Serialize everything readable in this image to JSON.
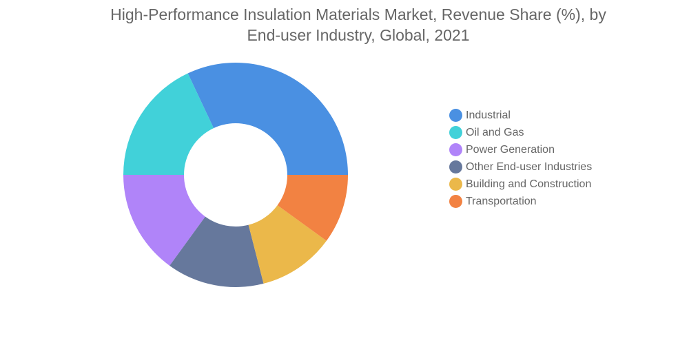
{
  "chart_data": {
    "type": "pie",
    "title_lines": [
      "High-Performance Insulation Materials Market, Revenue Share (%), by",
      "End-user Industry, Global, 2021"
    ],
    "donut": true,
    "legend_position": "right",
    "start_angle_deg": 0,
    "direction": "counterclockwise",
    "categories": [
      "Industrial",
      "Oil and Gas",
      "Power Generation",
      "Other End-user Industries",
      "Building and Construction",
      "Transportation"
    ],
    "values": [
      32,
      18,
      15,
      14,
      11,
      10
    ],
    "colors": [
      "#4a90e2",
      "#41d1d9",
      "#b084f9",
      "#66789c",
      "#ebb84a",
      "#f28242"
    ]
  }
}
